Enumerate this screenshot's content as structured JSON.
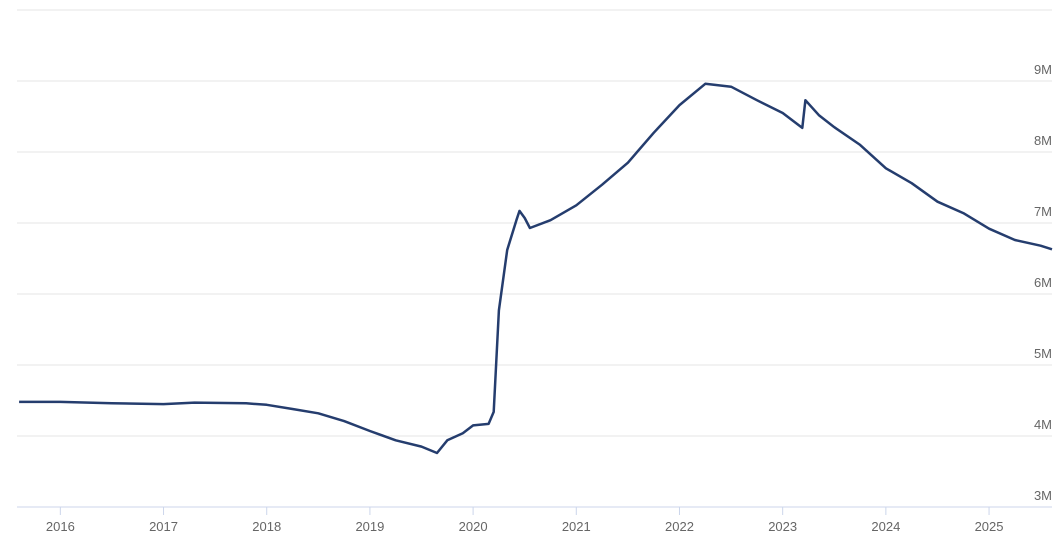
{
  "chart_data": {
    "type": "line",
    "x": [
      2015.6,
      2016.0,
      2016.5,
      2017.0,
      2017.3,
      2017.8,
      2018.0,
      2018.25,
      2018.5,
      2018.75,
      2019.0,
      2019.25,
      2019.5,
      2019.65,
      2019.75,
      2019.9,
      2020.0,
      2020.15,
      2020.2,
      2020.25,
      2020.33,
      2020.42,
      2020.45,
      2020.5,
      2020.55,
      2020.75,
      2021.0,
      2021.25,
      2021.5,
      2021.75,
      2022.0,
      2022.25,
      2022.5,
      2022.75,
      2023.0,
      2023.19,
      2023.22,
      2023.35,
      2023.5,
      2023.75,
      2024.0,
      2024.25,
      2024.5,
      2024.75,
      2025.0,
      2025.25,
      2025.5,
      2025.61
    ],
    "values": [
      4480000,
      4480000,
      4460000,
      4450000,
      4470000,
      4460000,
      4440000,
      4380000,
      4320000,
      4210000,
      4070000,
      3940000,
      3850000,
      3760000,
      3940000,
      4040000,
      4150000,
      4170000,
      4340000,
      5770000,
      6620000,
      7040000,
      7170000,
      7070000,
      6930000,
      7040000,
      7250000,
      7540000,
      7850000,
      8270000,
      8660000,
      8960000,
      8920000,
      8730000,
      8550000,
      8340000,
      8730000,
      8520000,
      8350000,
      8100000,
      7770000,
      7560000,
      7300000,
      7140000,
      6920000,
      6760000,
      6680000,
      6630000
    ],
    "color": "#253d6e",
    "xlim": [
      2015.58,
      2025.61
    ],
    "xticks": [
      2016,
      2017,
      2018,
      2019,
      2020,
      2021,
      2022,
      2023,
      2024,
      2025
    ],
    "ylim": [
      3000000,
      10000000
    ],
    "yticks": [
      {
        "value": 3000000,
        "label": "3M"
      },
      {
        "value": 4000000,
        "label": "4M"
      },
      {
        "value": 5000000,
        "label": "5M"
      },
      {
        "value": 6000000,
        "label": "6M"
      },
      {
        "value": 7000000,
        "label": "7M"
      },
      {
        "value": 8000000,
        "label": "8M"
      },
      {
        "value": 9000000,
        "label": "9M"
      }
    ],
    "grid": true
  }
}
